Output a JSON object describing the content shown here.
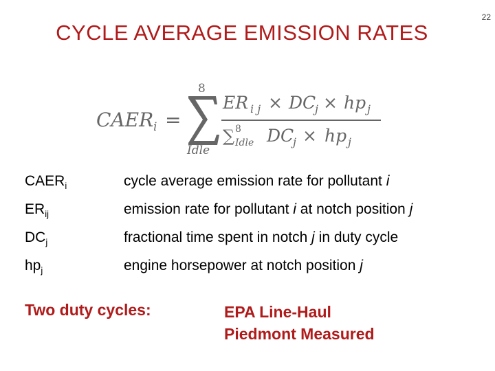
{
  "slide": {
    "title": "CYCLE AVERAGE EMISSION RATES",
    "page_number": "22"
  },
  "formula": {
    "lhs": "CAER",
    "lhs_sub": "i",
    "equals": "=",
    "sum_upper": "8",
    "sum_lower": "Idle",
    "numerator": "ER",
    "numerator_sub": "i j",
    "times": "×",
    "dc": "DC",
    "dc_sub": "j",
    "hp": "hp",
    "hp_sub": "j",
    "denominator_sum": "∑",
    "denominator_sum_upper": "8",
    "denominator_sum_lower": "Idle"
  },
  "definitions": [
    {
      "term": "CAER",
      "sub": "i",
      "desc_pre": "cycle average emission rate for pollutant ",
      "desc_it1": "i",
      "desc_mid": "",
      "desc_it2": ""
    },
    {
      "term": "ER",
      "sub": "ij",
      "desc_pre": "emission rate for pollutant ",
      "desc_it1": "i",
      "desc_mid": " at notch position ",
      "desc_it2": "j"
    },
    {
      "term": "DC",
      "sub": "j",
      "desc_pre": "fractional time spent in notch ",
      "desc_it1": "j",
      "desc_mid": " in duty cycle",
      "desc_it2": ""
    },
    {
      "term": "hp",
      "sub": "j",
      "desc_pre": "engine horsepower at notch position ",
      "desc_it1": "j",
      "desc_mid": "",
      "desc_it2": ""
    }
  ],
  "duty_cycles": {
    "label": "Two duty cycles:",
    "items": [
      "EPA Line-Haul",
      "Piedmont Measured"
    ]
  }
}
